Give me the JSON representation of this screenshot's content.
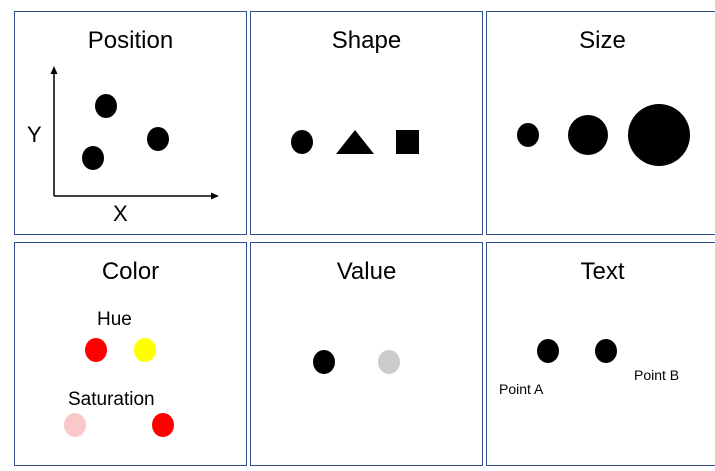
{
  "panels": {
    "position": {
      "title": "Position",
      "x_label": "X",
      "y_label": "Y"
    },
    "shape": {
      "title": "Shape"
    },
    "size": {
      "title": "Size"
    },
    "color": {
      "title": "Color",
      "hue_label": "Hue",
      "saturation_label": "Saturation",
      "hue_colors": [
        "#ff0000",
        "#ffff00"
      ],
      "saturation_colors": [
        "#fbc8c8",
        "#ff0000"
      ]
    },
    "value": {
      "title": "Value",
      "value_colors": [
        "#000000",
        "#cccccc"
      ]
    },
    "text": {
      "title": "Text",
      "point_a": "Point A",
      "point_b": "Point B"
    }
  },
  "colors": {
    "border": "#2f4f86",
    "mark": "#000000"
  }
}
